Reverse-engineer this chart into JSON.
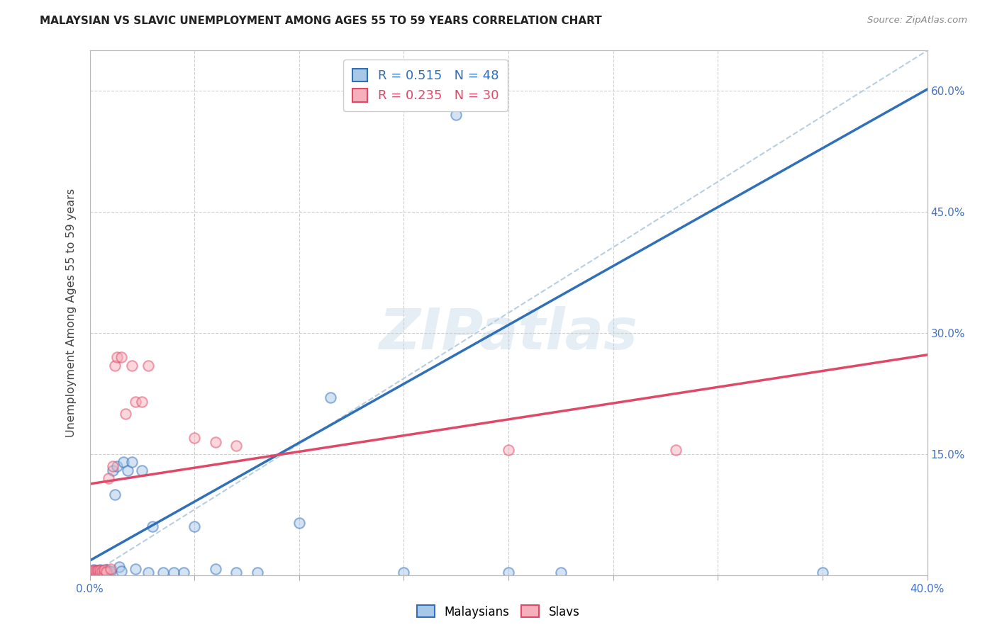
{
  "title": "MALAYSIAN VS SLAVIC UNEMPLOYMENT AMONG AGES 55 TO 59 YEARS CORRELATION CHART",
  "source": "Source: ZipAtlas.com",
  "ylabel": "Unemployment Among Ages 55 to 59 years",
  "xlim": [
    0.0,
    0.4
  ],
  "ylim": [
    0.0,
    0.65
  ],
  "grid_color": "#d0d0d0",
  "background_color": "#ffffff",
  "malaysian_color": "#a8c8e8",
  "slavic_color": "#f5b0bc",
  "trendline_malaysian_color": "#3070b8",
  "trendline_slavic_color": "#e04868",
  "diagonal_color": "#b8cfe0",
  "R_malaysian": 0.515,
  "N_malaysian": 48,
  "R_slavic": 0.235,
  "N_slavic": 30,
  "trendline_m_slope": 1.46,
  "trendline_m_intercept": 0.018,
  "trendline_s_slope": 0.4,
  "trendline_s_intercept": 0.113,
  "watermark_text": "ZIPatlas",
  "marker_size": 110,
  "marker_alpha": 0.5,
  "malaysian_x": [
    0.001,
    0.001,
    0.001,
    0.002,
    0.002,
    0.002,
    0.003,
    0.003,
    0.003,
    0.004,
    0.004,
    0.005,
    0.005,
    0.005,
    0.006,
    0.006,
    0.007,
    0.007,
    0.008,
    0.008,
    0.009,
    0.01,
    0.011,
    0.012,
    0.013,
    0.014,
    0.015,
    0.016,
    0.018,
    0.02,
    0.022,
    0.025,
    0.028,
    0.03,
    0.035,
    0.04,
    0.045,
    0.05,
    0.06,
    0.07,
    0.08,
    0.1,
    0.115,
    0.15,
    0.175,
    0.2,
    0.225,
    0.35
  ],
  "malaysian_y": [
    0.002,
    0.003,
    0.005,
    0.003,
    0.005,
    0.007,
    0.002,
    0.004,
    0.006,
    0.003,
    0.006,
    0.002,
    0.004,
    0.007,
    0.003,
    0.005,
    0.003,
    0.006,
    0.003,
    0.007,
    0.004,
    0.005,
    0.13,
    0.1,
    0.135,
    0.01,
    0.005,
    0.14,
    0.13,
    0.14,
    0.008,
    0.13,
    0.003,
    0.06,
    0.003,
    0.003,
    0.003,
    0.06,
    0.008,
    0.003,
    0.003,
    0.065,
    0.22,
    0.003,
    0.57,
    0.003,
    0.003,
    0.003
  ],
  "slavic_x": [
    0.001,
    0.001,
    0.002,
    0.002,
    0.003,
    0.003,
    0.004,
    0.004,
    0.005,
    0.005,
    0.006,
    0.007,
    0.007,
    0.008,
    0.009,
    0.01,
    0.011,
    0.012,
    0.013,
    0.015,
    0.017,
    0.02,
    0.022,
    0.025,
    0.028,
    0.05,
    0.06,
    0.07,
    0.2,
    0.28
  ],
  "slavic_y": [
    0.002,
    0.005,
    0.003,
    0.006,
    0.002,
    0.005,
    0.003,
    0.006,
    0.002,
    0.006,
    0.005,
    0.003,
    0.007,
    0.004,
    0.12,
    0.008,
    0.135,
    0.26,
    0.27,
    0.27,
    0.2,
    0.26,
    0.215,
    0.215,
    0.26,
    0.17,
    0.165,
    0.16,
    0.155,
    0.155
  ]
}
